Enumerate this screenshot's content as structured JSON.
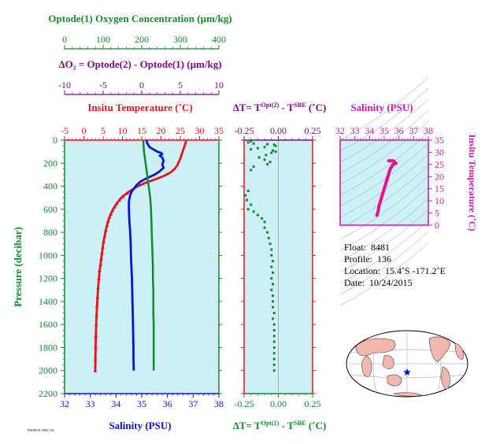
{
  "colors": {
    "temperature": "#e8141d",
    "salinity": "#0a14d6",
    "oxygen": "#138a2c",
    "delta_o2": "#7a0a8c",
    "salinity_top": "#c81aa8",
    "inset_marker": "#e8138c",
    "panel_bg": "#cdeff7"
  },
  "header": {
    "oxygen_title": "Optode(1) Oxygen Concentration (µm/kg)",
    "oxygen_ticks": [
      "0",
      "100",
      "200",
      "300",
      "400"
    ],
    "delta_o2_title": "ΔO₂ = Optode(2) - Optode(1)    (µm/kg)",
    "delta_o2_ticks": [
      "-10",
      "-5",
      "0",
      "5",
      "10"
    ],
    "temp_title": "Insitu Temperature (˚C)",
    "dt_top_title_a": "ΔT= T",
    "dt_top_title_sup": "Opt(2)",
    "dt_top_title_b": " - T",
    "dt_top_title_sup2": "SBE",
    "dt_top_title_c": " (˚C)",
    "salinity_top_title": "Salinity (PSU)"
  },
  "axes": {
    "pressure_label": "Pressure (decibar)",
    "pressure_ticks": [
      "0",
      "200",
      "400",
      "600",
      "800",
      "1000",
      "1200",
      "1400",
      "1600",
      "1800",
      "2000",
      "2200"
    ],
    "temp_ticks": [
      "-5",
      "0",
      "5",
      "10",
      "15",
      "20",
      "25",
      "30",
      "35"
    ],
    "salinity_ticks": [
      "32",
      "33",
      "34",
      "35",
      "36",
      "37",
      "38"
    ],
    "salinity_label": "Salinity (PSU)",
    "dt_ticks": [
      "-0.25",
      "0.00",
      "0.25"
    ],
    "dt_bottom_title_a": "ΔT= T",
    "dt_bottom_title_sup": "Opt(1)",
    "dt_bottom_title_b": " - T",
    "dt_bottom_title_sup2": "SBE",
    "dt_bottom_title_c": " (˚C)",
    "inset_sal_ticks": [
      "32",
      "33",
      "34",
      "35",
      "36",
      "37",
      "38"
    ],
    "inset_temp_ticks": [
      "0",
      "5",
      "10",
      "15",
      "20",
      "25",
      "30",
      "35"
    ],
    "inset_temp_label": "Insitu Temperature (˚C)"
  },
  "info": {
    "float_label": "Float:",
    "float_value": "8481",
    "profile_label": "Profile:",
    "profile_value": "136",
    "location_label": "Location:",
    "location_value": "15.4˚S  -171.2˚E",
    "date_label": "Date:",
    "date_value": "10/24/2015"
  },
  "footer_note": "PROFILE: 8481/136",
  "chart_data": [
    {
      "type": "line",
      "name": "main-profile-panel",
      "y_axis": {
        "label": "Pressure (decibar)",
        "range": [
          0,
          2200
        ],
        "inverted": true
      },
      "series": [
        {
          "name": "Insitu Temperature (˚C)",
          "axis": "temperature",
          "xlim": [
            -5,
            35
          ],
          "points": [
            [
              26.5,
              0
            ],
            [
              26.4,
              20
            ],
            [
              26.2,
              40
            ],
            [
              26,
              60
            ],
            [
              25.8,
              80
            ],
            [
              25.6,
              100
            ],
            [
              25.3,
              130
            ],
            [
              25,
              160
            ],
            [
              24.6,
              190
            ],
            [
              24.2,
              220
            ],
            [
              23.5,
              250
            ],
            [
              22.5,
              280
            ],
            [
              20.8,
              310
            ],
            [
              18.5,
              340
            ],
            [
              16,
              370
            ],
            [
              14,
              400
            ],
            [
              12.5,
              430
            ],
            [
              11.2,
              460
            ],
            [
              10,
              490
            ],
            [
              9.2,
              520
            ],
            [
              8.5,
              550
            ],
            [
              7.9,
              580
            ],
            [
              7.4,
              610
            ],
            [
              7,
              640
            ],
            [
              6.6,
              670
            ],
            [
              6.3,
              700
            ],
            [
              6,
              740
            ],
            [
              5.7,
              780
            ],
            [
              5.4,
              830
            ],
            [
              5.1,
              880
            ],
            [
              4.9,
              930
            ],
            [
              4.7,
              980
            ],
            [
              4.5,
              1030
            ],
            [
              4.3,
              1080
            ],
            [
              4.1,
              1130
            ],
            [
              3.9,
              1200
            ],
            [
              3.7,
              1280
            ],
            [
              3.55,
              1360
            ],
            [
              3.4,
              1440
            ],
            [
              3.3,
              1520
            ],
            [
              3.2,
              1600
            ],
            [
              3.1,
              1700
            ],
            [
              3.05,
              1800
            ],
            [
              3,
              1900
            ],
            [
              2.95,
              2000
            ]
          ]
        },
        {
          "name": "Salinity (PSU)",
          "axis": "salinity",
          "xlim": [
            32,
            38
          ],
          "points": [
            [
              35.2,
              0
            ],
            [
              35.2,
              20
            ],
            [
              35.25,
              40
            ],
            [
              35.3,
              60
            ],
            [
              35.45,
              80
            ],
            [
              35.6,
              100
            ],
            [
              35.75,
              110
            ],
            [
              35.8,
              120
            ],
            [
              35.7,
              135
            ],
            [
              35.8,
              150
            ],
            [
              35.85,
              180
            ],
            [
              35.8,
              210
            ],
            [
              35.85,
              240
            ],
            [
              35.7,
              270
            ],
            [
              35.5,
              300
            ],
            [
              35.2,
              330
            ],
            [
              34.95,
              360
            ],
            [
              34.8,
              390
            ],
            [
              34.7,
              420
            ],
            [
              34.6,
              450
            ],
            [
              34.55,
              480
            ],
            [
              34.52,
              510
            ],
            [
              34.5,
              540
            ],
            [
              34.5,
              600
            ],
            [
              34.52,
              700
            ],
            [
              34.55,
              800
            ],
            [
              34.57,
              900
            ],
            [
              34.58,
              1000
            ],
            [
              34.6,
              1100
            ],
            [
              34.62,
              1200
            ],
            [
              34.63,
              1300
            ],
            [
              34.64,
              1400
            ],
            [
              34.65,
              1500
            ],
            [
              34.66,
              1600
            ],
            [
              34.67,
              1700
            ],
            [
              34.68,
              1800
            ],
            [
              34.68,
              1900
            ],
            [
              34.69,
              2000
            ]
          ]
        },
        {
          "name": "Optode(1) Oxygen Concentration (µm/kg)",
          "axis": "oxygen",
          "xlim": [
            0,
            400
          ],
          "points": [
            [
              204,
              0
            ],
            [
              205,
              50
            ],
            [
              206,
              100
            ],
            [
              208,
              150
            ],
            [
              210,
              200
            ],
            [
              212,
              250
            ],
            [
              214,
              300
            ],
            [
              216,
              350
            ],
            [
              218,
              400
            ],
            [
              220,
              450
            ],
            [
              222,
              500
            ],
            [
              223,
              550
            ],
            [
              224,
              600
            ],
            [
              225,
              700
            ],
            [
              226,
              800
            ],
            [
              227,
              900
            ],
            [
              228,
              1000
            ],
            [
              229,
              1100
            ],
            [
              229,
              1200
            ],
            [
              230,
              1300
            ],
            [
              230,
              1400
            ],
            [
              230,
              1500
            ],
            [
              231,
              1600
            ],
            [
              231,
              1700
            ],
            [
              231,
              1800
            ],
            [
              231,
              1900
            ],
            [
              231,
              2000
            ]
          ]
        }
      ]
    },
    {
      "type": "scatter",
      "name": "delta-t-panel",
      "x_axis": {
        "label": "ΔT= T Opt(1) - T SBE (˚C)",
        "range": [
          -0.25,
          0.25
        ]
      },
      "y_axis": {
        "label": "Pressure (decibar)",
        "range": [
          0,
          2200
        ],
        "inverted": true
      },
      "points": [
        [
          -0.2,
          10
        ],
        [
          -0.22,
          20
        ],
        [
          -0.18,
          30
        ],
        [
          -0.08,
          35
        ],
        [
          -0.03,
          40
        ],
        [
          -0.02,
          50
        ],
        [
          -0.1,
          60
        ],
        [
          -0.15,
          70
        ],
        [
          -0.2,
          80
        ],
        [
          -0.04,
          90
        ],
        [
          -0.02,
          100
        ],
        [
          -0.05,
          110
        ],
        [
          -0.09,
          130
        ],
        [
          -0.14,
          150
        ],
        [
          -0.1,
          170
        ],
        [
          -0.06,
          190
        ],
        [
          -0.08,
          210
        ],
        [
          -0.18,
          230
        ],
        [
          -0.2,
          260
        ],
        [
          -0.22,
          440
        ],
        [
          -0.24,
          480
        ],
        [
          -0.23,
          520
        ],
        [
          -0.2,
          560
        ],
        [
          -0.22,
          600
        ],
        [
          -0.18,
          620
        ],
        [
          -0.15,
          650
        ],
        [
          -0.12,
          680
        ],
        [
          -0.1,
          710
        ],
        [
          -0.1,
          760
        ],
        [
          -0.08,
          800
        ],
        [
          -0.07,
          850
        ],
        [
          -0.06,
          900
        ],
        [
          -0.05,
          950
        ],
        [
          -0.05,
          1000
        ],
        [
          -0.04,
          1050
        ],
        [
          -0.05,
          1100
        ],
        [
          -0.04,
          1150
        ],
        [
          -0.05,
          1200
        ],
        [
          -0.04,
          1250
        ],
        [
          -0.05,
          1300
        ],
        [
          -0.04,
          1350
        ],
        [
          -0.04,
          1400
        ],
        [
          -0.04,
          1450
        ],
        [
          -0.03,
          1500
        ],
        [
          -0.04,
          1550
        ],
        [
          -0.03,
          1600
        ],
        [
          -0.03,
          1650
        ],
        [
          -0.03,
          1700
        ],
        [
          -0.03,
          1750
        ],
        [
          -0.03,
          1800
        ],
        [
          -0.03,
          1850
        ],
        [
          -0.03,
          1900
        ],
        [
          -0.03,
          1950
        ],
        [
          -0.03,
          2000
        ]
      ]
    },
    {
      "type": "line",
      "name": "ts-inset",
      "x_axis": {
        "label": "Salinity (PSU)",
        "range": [
          32,
          38
        ]
      },
      "y_axis": {
        "label": "Insitu Temperature (˚C)",
        "range": [
          0,
          35
        ]
      },
      "points": [
        [
          34.5,
          4
        ],
        [
          34.55,
          5
        ],
        [
          34.6,
          6
        ],
        [
          34.62,
          7
        ],
        [
          34.65,
          8
        ],
        [
          34.7,
          9
        ],
        [
          34.75,
          10
        ],
        [
          34.8,
          11
        ],
        [
          34.85,
          12
        ],
        [
          34.9,
          13
        ],
        [
          34.95,
          14
        ],
        [
          35.0,
          15
        ],
        [
          35.05,
          16
        ],
        [
          35.1,
          17
        ],
        [
          35.15,
          18
        ],
        [
          35.2,
          19
        ],
        [
          35.25,
          20
        ],
        [
          35.3,
          21
        ],
        [
          35.35,
          22
        ],
        [
          35.4,
          23
        ],
        [
          35.5,
          24
        ],
        [
          35.6,
          25
        ],
        [
          35.8,
          25.5
        ],
        [
          35.6,
          26.5
        ],
        [
          35.3,
          26.5
        ]
      ]
    }
  ]
}
